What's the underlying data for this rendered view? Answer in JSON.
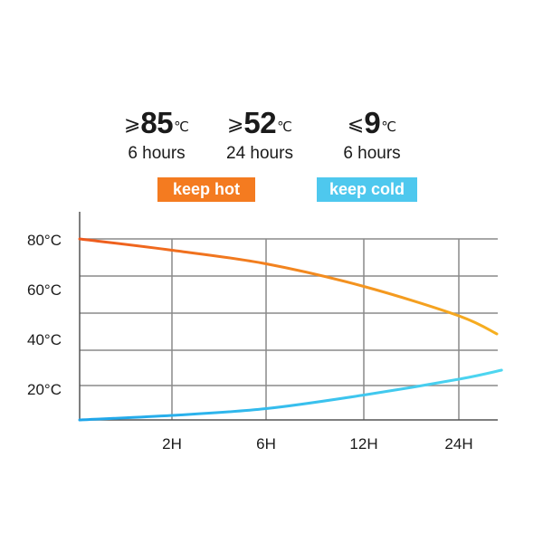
{
  "stats": [
    {
      "symbol": "⩾",
      "value": "85",
      "unit": "℃",
      "duration": "6 hours"
    },
    {
      "symbol": "⩾",
      "value": "52",
      "unit": "℃",
      "duration": "24 hours"
    },
    {
      "symbol": "⩽",
      "value": "9",
      "unit": "℃",
      "duration": "6 hours"
    }
  ],
  "badges": {
    "hot": {
      "label": "keep hot",
      "color": "#f47b20"
    },
    "cold": {
      "label": "keep cold",
      "color": "#4ec8ee"
    }
  },
  "chart_data": {
    "type": "line",
    "x_ticks": [
      "2H",
      "6H",
      "12H",
      "24H"
    ],
    "y_ticks": [
      "80°C",
      "60°C",
      "40°C",
      "20°C"
    ],
    "grid": true,
    "series": [
      {
        "color_start": "#ee5a1e",
        "color_end": "#f6b020",
        "points": [
          [
            0,
            80
          ],
          [
            1,
            75
          ],
          [
            2,
            69
          ],
          [
            3,
            59
          ],
          [
            4,
            46
          ],
          [
            4.4,
            38
          ]
        ]
      },
      {
        "color_start": "#1ea5ea",
        "color_end": "#4fd7f0",
        "points": [
          [
            0,
            0
          ],
          [
            1,
            2
          ],
          [
            2,
            5
          ],
          [
            3,
            11
          ],
          [
            4,
            18
          ],
          [
            4.45,
            22
          ]
        ]
      }
    ]
  }
}
